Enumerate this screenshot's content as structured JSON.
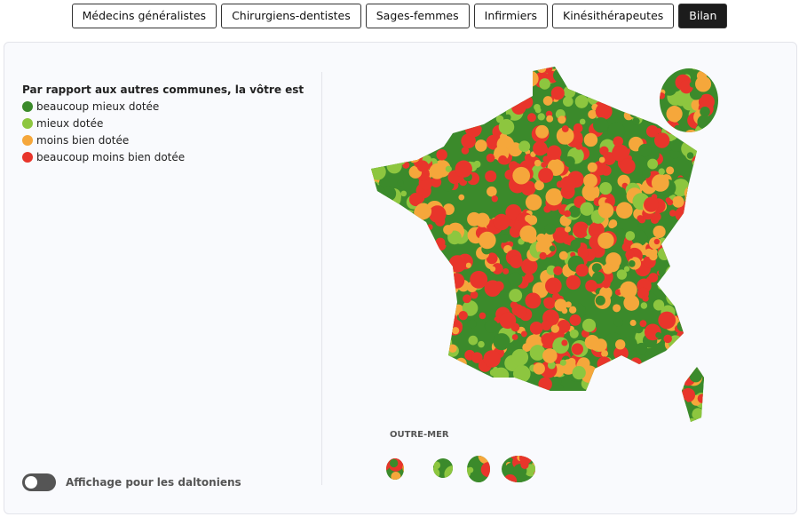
{
  "tabs": [
    "Médecins généralistes",
    "Chirurgiens-dentistes",
    "Sages-femmes",
    "Infirmiers",
    "Kinésithérapeutes",
    "Bilan"
  ],
  "active_tab": 5,
  "legend": {
    "title": "Par rapport aux autres communes, la vôtre est",
    "items": [
      {
        "label": "beaucoup mieux dotée",
        "color": "#3b8a2b"
      },
      {
        "label": "mieux dotée",
        "color": "#8dc63f"
      },
      {
        "label": "moins bien dotée",
        "color": "#f5a73b"
      },
      {
        "label": "beaucoup moins bien dotée",
        "color": "#e8352b"
      }
    ]
  },
  "outre_mer_label": "OUTRE-MER",
  "toggle_label": "Affichage pour les daltoniens"
}
